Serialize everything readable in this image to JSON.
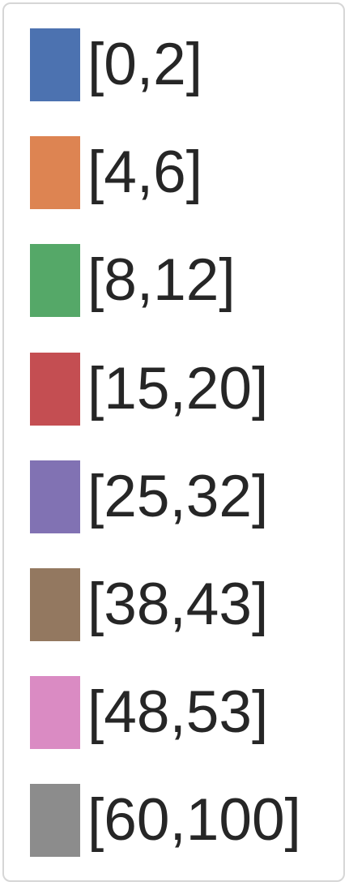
{
  "chart_data": {
    "type": "legend",
    "legend": {
      "entries": [
        {
          "label": "[0,2]",
          "color": "#4c72b0"
        },
        {
          "label": "[4,6]",
          "color": "#dd8452"
        },
        {
          "label": "[8,12]",
          "color": "#55a868"
        },
        {
          "label": "[15,20]",
          "color": "#c44e52"
        },
        {
          "label": "[25,32]",
          "color": "#8172b3"
        },
        {
          "label": "[38,43]",
          "color": "#937860"
        },
        {
          "label": "[48,53]",
          "color": "#da8bc3"
        },
        {
          "label": "[60,100]",
          "color": "#8c8c8c"
        }
      ]
    }
  }
}
